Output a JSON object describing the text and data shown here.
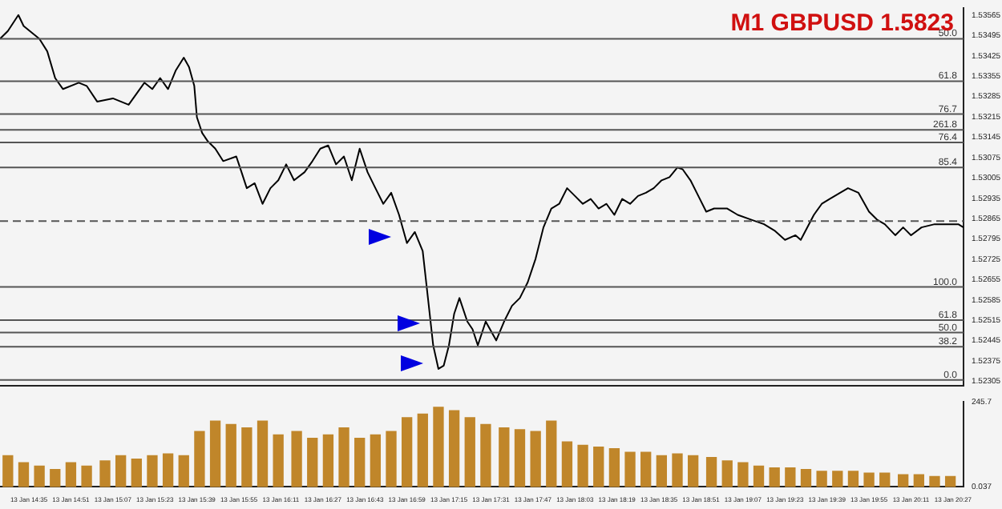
{
  "chart_data": [
    {
      "type": "line",
      "title": "M1 GBPUSD 1.5823",
      "xlim": [
        "--01-13T14:24",
        "--01-13T20:31"
      ],
      "ylim": [
        1.5229,
        1.5359
      ],
      "xticks": [
        {
          "value": "--01-13T14:35",
          "label": "13 Jan 14:35"
        },
        {
          "value": "--01-13T14:51",
          "label": "13 Jan 14:51"
        },
        {
          "value": "--01-13T15:07",
          "label": "13 Jan 15:07"
        },
        {
          "value": "--01-13T15:23",
          "label": "13 Jan 15:23"
        },
        {
          "value": "--01-13T15:39",
          "label": "13 Jan 15:39"
        },
        {
          "value": "--01-13T15:55",
          "label": "13 Jan 15:55"
        },
        {
          "value": "--01-13T16:11",
          "label": "13 Jan 16:11"
        },
        {
          "value": "--01-13T16:27",
          "label": "13 Jan 16:27"
        },
        {
          "value": "--01-13T16:43",
          "label": "13 Jan 16:43"
        },
        {
          "value": "--01-13T16:59",
          "label": "13 Jan 16:59"
        },
        {
          "value": "--01-13T17:15",
          "label": "13 Jan 17:15"
        },
        {
          "value": "--01-13T17:31",
          "label": "13 Jan 17:31"
        },
        {
          "value": "--01-13T17:47",
          "label": "13 Jan 17:47"
        },
        {
          "value": "--01-13T18:03",
          "label": "13 Jan 18:03"
        },
        {
          "value": "--01-13T18:19",
          "label": "13 Jan 18:19"
        },
        {
          "value": "--01-13T18:35",
          "label": "13 Jan 18:35"
        },
        {
          "value": "--01-13T18:51",
          "label": "13 Jan 18:51"
        },
        {
          "value": "--01-13T19:07",
          "label": "13 Jan 19:07"
        },
        {
          "value": "--01-13T19:23",
          "label": "13 Jan 19:23"
        },
        {
          "value": "--01-13T19:39",
          "label": "13 Jan 19:39"
        },
        {
          "value": "--01-13T19:55",
          "label": "13 Jan 19:55"
        },
        {
          "value": "--01-13T20:11",
          "label": "13 Jan 20:11"
        },
        {
          "value": "--01-13T20:27",
          "label": "13 Jan 20:27"
        }
      ],
      "yticks": [
        1.52305,
        1.52375,
        1.52445,
        1.52515,
        1.52585,
        1.52655,
        1.52725,
        1.52795,
        1.52865,
        1.52935,
        1.53005,
        1.53075,
        1.53145,
        1.53215,
        1.53285,
        1.53355,
        1.53425,
        1.53495,
        1.53565
      ],
      "tick_labels": "y",
      "grid": false,
      "legend": false,
      "marker": "none",
      "line_style": "solid",
      "series": [
        {
          "color": "#000000",
          "x": [
            "--01-13T14:24",
            "--01-13T14:27",
            "--01-13T14:31",
            "--01-13T14:33",
            "--01-13T14:39",
            "--01-13T14:42",
            "--01-13T14:45",
            "--01-13T14:48",
            "--01-13T14:54",
            "--01-13T14:57",
            "--01-13T15:01",
            "--01-13T15:07",
            "--01-13T15:13",
            "--01-13T15:19",
            "--01-13T15:22",
            "--01-13T15:25",
            "--01-13T15:28",
            "--01-13T15:31",
            "--01-13T15:34",
            "--01-13T15:36",
            "--01-13T15:38",
            "--01-13T15:39",
            "--01-13T15:41",
            "--01-13T15:43",
            "--01-13T15:46",
            "--01-13T15:49",
            "--01-13T15:54",
            "--01-13T15:56",
            "--01-13T15:58",
            "--01-13T16:01",
            "--01-13T16:04",
            "--01-13T16:07",
            "--01-13T16:10",
            "--01-13T16:13",
            "--01-13T16:16",
            "--01-13T16:20",
            "--01-13T16:23",
            "--01-13T16:26",
            "--01-13T16:29",
            "--01-13T16:32",
            "--01-13T16:35",
            "--01-13T16:38",
            "--01-13T16:41",
            "--01-13T16:44",
            "--01-13T16:47",
            "--01-13T16:50",
            "--01-13T16:53",
            "--01-13T16:56",
            "--01-13T16:59",
            "--01-13T17:02",
            "--01-13T17:05",
            "--01-13T17:07",
            "--01-13T17:09",
            "--01-13T17:11",
            "--01-13T17:13",
            "--01-13T17:15",
            "--01-13T17:17",
            "--01-13T17:19",
            "--01-13T17:22",
            "--01-13T17:24",
            "--01-13T17:26",
            "--01-13T17:29",
            "--01-13T17:33",
            "--01-13T17:36",
            "--01-13T17:39",
            "--01-13T17:42",
            "--01-13T17:45",
            "--01-13T17:48",
            "--01-13T17:51",
            "--01-13T17:54",
            "--01-13T17:57",
            "--01-13T18:00",
            "--01-13T18:03",
            "--01-13T18:06",
            "--01-13T18:09",
            "--01-13T18:12",
            "--01-13T18:15",
            "--01-13T18:18",
            "--01-13T18:21",
            "--01-13T18:24",
            "--01-13T18:27",
            "--01-13T18:30",
            "--01-13T18:33",
            "--01-13T18:36",
            "--01-13T18:39",
            "--01-13T18:42",
            "--01-13T18:44",
            "--01-13T18:47",
            "--01-13T18:50",
            "--01-13T18:53",
            "--01-13T18:56",
            "--01-13T19:01",
            "--01-13T19:05",
            "--01-13T19:10",
            "--01-13T19:15",
            "--01-13T19:19",
            "--01-13T19:23",
            "--01-13T19:27",
            "--01-13T19:29",
            "--01-13T19:34",
            "--01-13T19:37",
            "--01-13T19:40",
            "--01-13T19:44",
            "--01-13T19:47",
            "--01-13T19:51",
            "--01-13T19:55",
            "--01-13T19:58",
            "--01-13T20:01",
            "--01-13T20:05",
            "--01-13T20:08",
            "--01-13T20:11",
            "--01-13T20:15",
            "--01-13T20:20",
            "--01-13T20:23",
            "--01-13T20:25",
            "--01-13T20:29",
            "--01-13T20:31"
          ],
          "values": [
            1.53484,
            1.53511,
            1.53566,
            1.53528,
            1.53484,
            1.53441,
            1.53349,
            1.53311,
            1.53333,
            1.53322,
            1.53268,
            1.53279,
            1.53257,
            1.53333,
            1.53311,
            1.53349,
            1.53311,
            1.53376,
            1.53419,
            1.53387,
            1.53322,
            1.53214,
            1.5316,
            1.53133,
            1.53106,
            1.53063,
            1.53079,
            1.53025,
            1.5297,
            1.52987,
            1.52916,
            1.5297,
            1.52997,
            1.53052,
            1.52997,
            1.53025,
            1.53063,
            1.53106,
            1.53117,
            1.53052,
            1.53079,
            1.52997,
            1.53106,
            1.53025,
            1.5297,
            1.52916,
            1.52954,
            1.52878,
            1.52781,
            1.52819,
            1.52754,
            1.52592,
            1.52429,
            1.52348,
            1.52359,
            1.52429,
            1.52538,
            1.52592,
            1.52511,
            1.52484,
            1.52429,
            1.52511,
            1.52446,
            1.52511,
            1.52565,
            1.52592,
            1.52646,
            1.52727,
            1.52835,
            1.529,
            1.52916,
            1.5297,
            1.52943,
            1.52916,
            1.52933,
            1.529,
            1.52916,
            1.52878,
            1.52933,
            1.52916,
            1.52943,
            1.52954,
            1.5297,
            1.52997,
            1.53008,
            1.53041,
            1.53035,
            1.52997,
            1.52943,
            1.52889,
            1.529,
            1.529,
            1.52878,
            1.52862,
            1.52846,
            1.52824,
            1.52792,
            1.52808,
            1.52792,
            1.52878,
            1.52916,
            1.52933,
            1.52954,
            1.5297,
            1.52954,
            1.52889,
            1.52862,
            1.52846,
            1.52808,
            1.52835,
            1.52808,
            1.52835,
            1.52846,
            1.52846,
            1.52846,
            1.52846,
            1.52835
          ]
        }
      ],
      "ref_lines": [
        {
          "axis": "y",
          "value": 1.53484
        },
        {
          "axis": "y",
          "value": 1.53338
        },
        {
          "axis": "y",
          "value": 1.53225
        },
        {
          "axis": "y",
          "value": 1.53127
        },
        {
          "axis": "y",
          "value": 1.53041
        },
        {
          "axis": "y",
          "value": 1.52857,
          "line_style": "dashed"
        },
        {
          "axis": "y",
          "value": 1.53171
        },
        {
          "axis": "y",
          "value": 1.5263
        },
        {
          "axis": "y",
          "value": 1.52516
        },
        {
          "axis": "y",
          "value": 1.52473
        },
        {
          "axis": "y",
          "value": 1.52424
        },
        {
          "axis": "y",
          "value": 1.5231
        }
      ],
      "annotations": [
        {
          "text": "50.0",
          "y": 1.53484
        },
        {
          "text": "61.8",
          "y": 1.53338
        },
        {
          "text": "76.7",
          "y": 1.53225
        },
        {
          "text": "76.4",
          "y": 1.53127
        },
        {
          "text": "85.4",
          "y": 1.53041
        },
        {
          "text": "261.8",
          "y": 1.53171
        },
        {
          "text": "100.0",
          "y": 1.5263
        },
        {
          "text": "61.8",
          "y": 1.52516
        },
        {
          "text": "50.0",
          "y": 1.52473
        },
        {
          "text": "38.2",
          "y": 1.52424
        },
        {
          "text": "0.0",
          "y": 1.5231
        }
      ]
    },
    {
      "type": "bar",
      "xlim": [
        "--01-13T14:24",
        "--01-13T20:31"
      ],
      "ylim": [
        0,
        245.7
      ],
      "yticks": [
        0.037,
        245.7
      ],
      "xticks": [
        {
          "value": "--01-13T14:35",
          "label": "13 Jan 14:35"
        },
        {
          "value": "--01-13T14:51",
          "label": "13 Jan 14:51"
        },
        {
          "value": "--01-13T15:07",
          "label": "13 Jan 15:07"
        },
        {
          "value": "--01-13T15:23",
          "label": "13 Jan 15:23"
        },
        {
          "value": "--01-13T15:39",
          "label": "13 Jan 15:39"
        },
        {
          "value": "--01-13T15:55",
          "label": "13 Jan 15:55"
        },
        {
          "value": "--01-13T16:11",
          "label": "13 Jan 16:11"
        },
        {
          "value": "--01-13T16:27",
          "label": "13 Jan 16:27"
        },
        {
          "value": "--01-13T16:43",
          "label": "13 Jan 16:43"
        },
        {
          "value": "--01-13T16:59",
          "label": "13 Jan 16:59"
        },
        {
          "value": "--01-13T17:15",
          "label": "13 Jan 17:15"
        },
        {
          "value": "--01-13T17:31",
          "label": "13 Jan 17:31"
        },
        {
          "value": "--01-13T17:47",
          "label": "13 Jan 17:47"
        },
        {
          "value": "--01-13T18:03",
          "label": "13 Jan 18:03"
        },
        {
          "value": "--01-13T18:19",
          "label": "13 Jan 18:19"
        },
        {
          "value": "--01-13T18:35",
          "label": "13 Jan 18:35"
        },
        {
          "value": "--01-13T18:51",
          "label": "13 Jan 18:51"
        },
        {
          "value": "--01-13T19:07",
          "label": "13 Jan 19:07"
        },
        {
          "value": "--01-13T19:23",
          "label": "13 Jan 19:23"
        },
        {
          "value": "--01-13T19:39",
          "label": "13 Jan 19:39"
        },
        {
          "value": "--01-13T19:55",
          "label": "13 Jan 19:55"
        },
        {
          "value": "--01-13T20:11",
          "label": "13 Jan 20:11"
        },
        {
          "value": "--01-13T20:27",
          "label": "13 Jan 20:27"
        }
      ],
      "grid": false,
      "legend": false,
      "x": [
        "--01-13T14:27",
        "--01-13T14:33",
        "--01-13T14:39",
        "--01-13T14:45",
        "--01-13T14:51",
        "--01-13T14:57",
        "--01-13T15:04",
        "--01-13T15:10",
        "--01-13T15:16",
        "--01-13T15:22",
        "--01-13T15:28",
        "--01-13T15:34",
        "--01-13T15:40",
        "--01-13T15:46",
        "--01-13T15:52",
        "--01-13T15:58",
        "--01-13T16:04",
        "--01-13T16:10",
        "--01-13T16:17",
        "--01-13T16:23",
        "--01-13T16:29",
        "--01-13T16:35",
        "--01-13T16:41",
        "--01-13T16:47",
        "--01-13T16:53",
        "--01-13T16:59",
        "--01-13T17:05",
        "--01-13T17:11",
        "--01-13T17:17",
        "--01-13T17:23",
        "--01-13T17:29",
        "--01-13T17:36",
        "--01-13T17:42",
        "--01-13T17:48",
        "--01-13T17:54",
        "--01-13T18:00",
        "--01-13T18:06",
        "--01-13T18:12",
        "--01-13T18:18",
        "--01-13T18:24",
        "--01-13T18:30",
        "--01-13T18:36",
        "--01-13T18:42",
        "--01-13T18:48",
        "--01-13T18:55",
        "--01-13T19:01",
        "--01-13T19:07",
        "--01-13T19:13",
        "--01-13T19:19",
        "--01-13T19:25",
        "--01-13T19:31",
        "--01-13T19:37",
        "--01-13T19:43",
        "--01-13T19:49",
        "--01-13T19:55",
        "--01-13T20:01",
        "--01-13T20:08",
        "--01-13T20:14",
        "--01-13T20:20",
        "--01-13T20:26"
      ],
      "values": [
        90,
        70,
        60,
        50,
        70,
        60,
        75,
        90,
        80,
        90,
        95,
        90,
        160,
        190,
        180,
        170,
        190,
        150,
        160,
        140,
        150,
        170,
        140,
        150,
        160,
        200,
        210,
        230,
        220,
        200,
        180,
        170,
        165,
        160,
        190,
        130,
        120,
        115,
        110,
        100,
        100,
        90,
        95,
        90,
        85,
        75,
        70,
        60,
        55,
        55,
        50,
        45,
        45,
        45,
        40,
        40,
        35,
        35,
        30,
        30
      ],
      "color": "#c0862a"
    }
  ]
}
